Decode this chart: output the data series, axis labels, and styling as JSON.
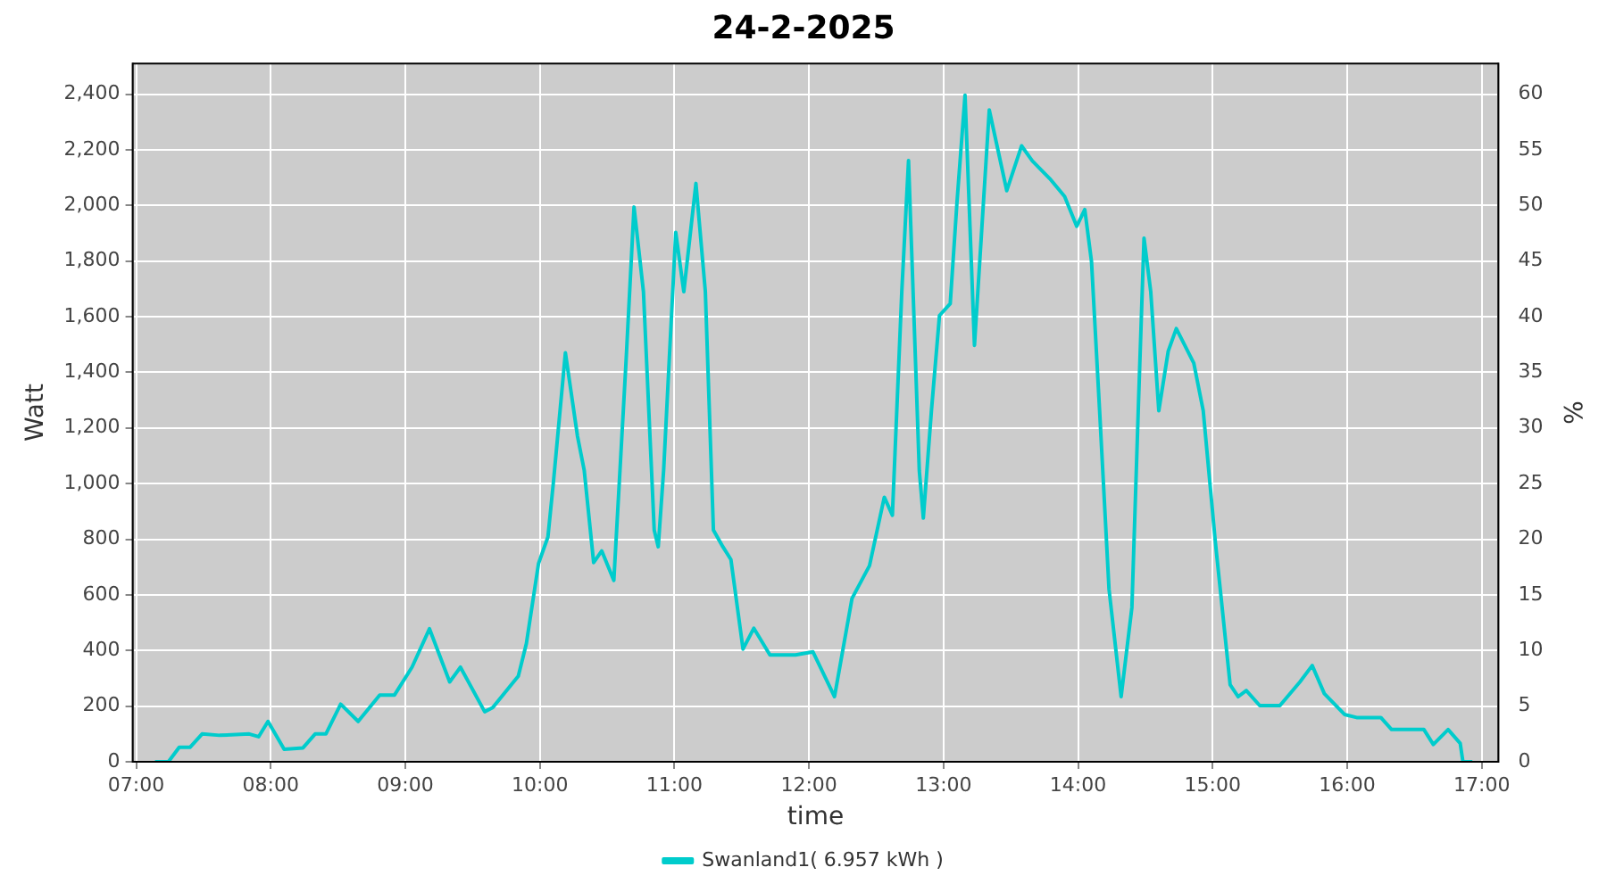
{
  "chart_data": {
    "type": "line",
    "title": "24-2-2025",
    "xlabel": "time",
    "ylabel": "Watt",
    "y2label": "%",
    "xlim": [
      6.974,
      17.124
    ],
    "xticks": [
      {
        "value": 7,
        "label": "07:00"
      },
      {
        "value": 8,
        "label": "08:00"
      },
      {
        "value": 9,
        "label": "09:00"
      },
      {
        "value": 10,
        "label": "10:00"
      },
      {
        "value": 11,
        "label": "11:00"
      },
      {
        "value": 12,
        "label": "12:00"
      },
      {
        "value": 13,
        "label": "13:00"
      },
      {
        "value": 14,
        "label": "14:00"
      },
      {
        "value": 15,
        "label": "15:00"
      },
      {
        "value": 16,
        "label": "16:00"
      },
      {
        "value": 17,
        "label": "17:00"
      }
    ],
    "ylim": [
      0,
      2510
    ],
    "yticks": [
      0,
      200,
      400,
      600,
      800,
      {
        "value": 1000,
        "label": "1,000"
      },
      {
        "value": 1200,
        "label": "1,200"
      },
      {
        "value": 1400,
        "label": "1,400"
      },
      {
        "value": 1600,
        "label": "1,600"
      },
      {
        "value": 1800,
        "label": "1,800"
      },
      {
        "value": 2000,
        "label": "2,000"
      },
      {
        "value": 2200,
        "label": "2,200"
      },
      {
        "value": 2400,
        "label": "2,400"
      }
    ],
    "y2lim": [
      0,
      62.75
    ],
    "y2ticks": [
      0,
      5,
      10,
      15,
      20,
      25,
      30,
      35,
      40,
      45,
      50,
      55,
      60
    ],
    "grid": true,
    "legend": "bottom",
    "marker": "none",
    "line_style": "solid",
    "series": [
      {
        "name": "Swanland1( 6.957 kWh )",
        "color": "#00cccc",
        "x": [
          7.14,
          7.24,
          7.32,
          7.4,
          7.49,
          7.62,
          7.84,
          7.91,
          7.98,
          8.1,
          8.24,
          8.33,
          8.41,
          8.52,
          8.65,
          8.81,
          8.92,
          9.05,
          9.18,
          9.33,
          9.41,
          9.59,
          9.65,
          9.84,
          9.9,
          9.99,
          10.06,
          10.1,
          10.19,
          10.28,
          10.33,
          10.4,
          10.46,
          10.55,
          10.64,
          10.7,
          10.77,
          10.85,
          10.88,
          10.92,
          11.01,
          11.07,
          11.16,
          11.23,
          11.29,
          11.36,
          11.42,
          11.51,
          11.59,
          11.71,
          11.9,
          12.03,
          12.19,
          12.32,
          12.45,
          12.56,
          12.62,
          12.69,
          12.74,
          12.82,
          12.85,
          12.91,
          12.97,
          13.05,
          13.1,
          13.16,
          13.23,
          13.34,
          13.47,
          13.58,
          13.66,
          13.79,
          13.9,
          13.99,
          14.05,
          14.1,
          14.16,
          14.23,
          14.32,
          14.4,
          14.45,
          14.49,
          14.54,
          14.6,
          14.67,
          14.73,
          14.86,
          14.93,
          15.02,
          15.13,
          15.19,
          15.25,
          15.35,
          15.5,
          15.65,
          15.74,
          15.83,
          15.98,
          16.07,
          16.25,
          16.33,
          16.57,
          16.64,
          16.75,
          16.84,
          16.86,
          16.93
        ],
        "values": [
          0,
          0,
          52,
          52,
          100,
          95,
          100,
          90,
          145,
          45,
          50,
          100,
          100,
          207,
          145,
          240,
          240,
          340,
          478,
          287,
          340,
          180,
          195,
          308,
          425,
          712,
          808,
          1000,
          1470,
          1170,
          1047,
          716,
          758,
          652,
          1433,
          1994,
          1690,
          833,
          773,
          1047,
          1903,
          1690,
          2079,
          1690,
          833,
          773,
          727,
          405,
          480,
          384,
          384,
          395,
          234,
          587,
          705,
          951,
          886,
          1690,
          2161,
          1047,
          876,
          1261,
          1604,
          1647,
          2011,
          2396,
          1497,
          2343,
          2053,
          2214,
          2160,
          2096,
          2032,
          1925,
          1985,
          1797,
          1262,
          620,
          234,
          555,
          1305,
          1882,
          1690,
          1262,
          1476,
          1557,
          1433,
          1262,
          791,
          277,
          234,
          256,
          202,
          202,
          288,
          346,
          245,
          170,
          159,
          159,
          116,
          116,
          62,
          116,
          66,
          0,
          0
        ]
      }
    ]
  }
}
